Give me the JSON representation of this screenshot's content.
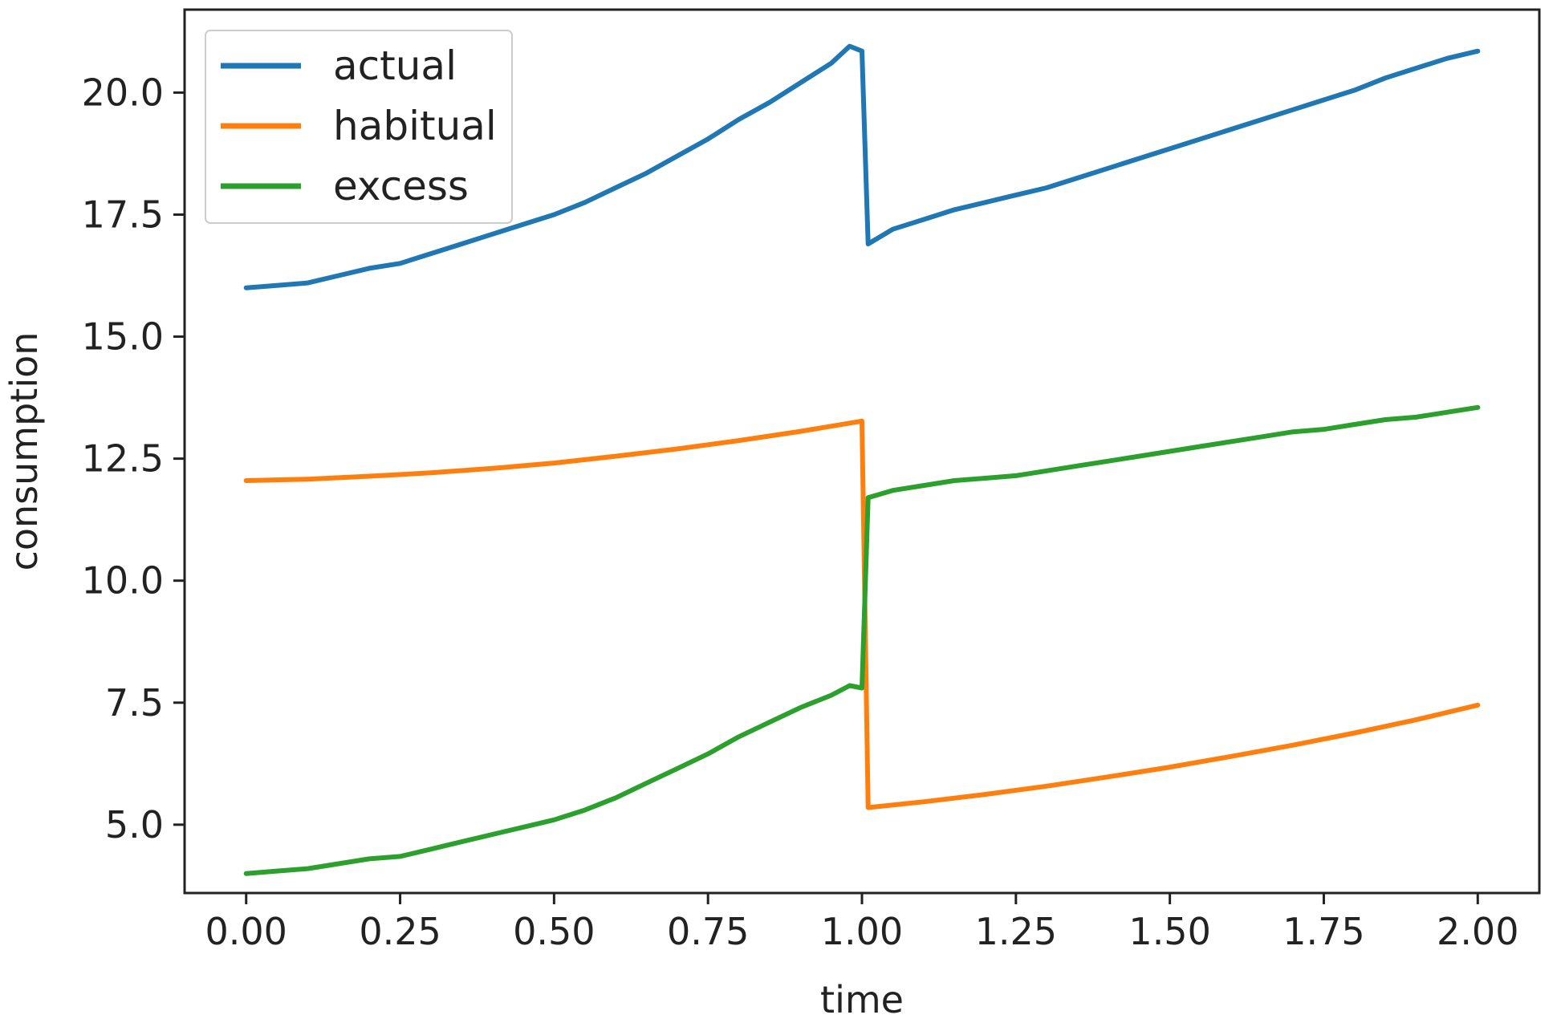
{
  "chart_data": {
    "type": "line",
    "title": "",
    "xlabel": "time",
    "ylabel": "consumption",
    "xlim": [
      -0.1,
      2.1
    ],
    "ylim": [
      3.6,
      21.7
    ],
    "x_ticks": [
      0.0,
      0.25,
      0.5,
      0.75,
      1.0,
      1.25,
      1.5,
      1.75,
      2.0
    ],
    "x_tick_labels": [
      "0.00",
      "0.25",
      "0.50",
      "0.75",
      "1.00",
      "1.25",
      "1.50",
      "1.75",
      "2.00"
    ],
    "y_ticks": [
      5.0,
      7.5,
      10.0,
      12.5,
      15.0,
      17.5,
      20.0
    ],
    "y_tick_labels": [
      "5.0",
      "7.5",
      "10.0",
      "12.5",
      "15.0",
      "17.5",
      "20.0"
    ],
    "grid": false,
    "legend_position": "top-left",
    "series": [
      {
        "name": "actual",
        "color": "#1f77b4",
        "x": [
          0.0,
          0.05,
          0.1,
          0.15,
          0.2,
          0.25,
          0.3,
          0.35,
          0.4,
          0.45,
          0.5,
          0.55,
          0.6,
          0.65,
          0.7,
          0.75,
          0.8,
          0.85,
          0.9,
          0.95,
          0.98,
          1.0,
          1.01,
          1.05,
          1.1,
          1.15,
          1.2,
          1.25,
          1.3,
          1.35,
          1.4,
          1.45,
          1.5,
          1.55,
          1.6,
          1.65,
          1.7,
          1.75,
          1.8,
          1.85,
          1.9,
          1.95,
          2.0
        ],
        "y": [
          16.0,
          16.05,
          16.1,
          16.25,
          16.4,
          16.5,
          16.7,
          16.9,
          17.1,
          17.3,
          17.5,
          17.75,
          18.05,
          18.35,
          18.7,
          19.05,
          19.45,
          19.8,
          20.2,
          20.6,
          20.95,
          20.85,
          16.9,
          17.2,
          17.4,
          17.6,
          17.75,
          17.9,
          18.05,
          18.25,
          18.45,
          18.65,
          18.85,
          19.05,
          19.25,
          19.45,
          19.65,
          19.85,
          20.05,
          20.3,
          20.5,
          20.7,
          20.85
        ]
      },
      {
        "name": "habitual",
        "color": "#ff7f0e",
        "x": [
          0.0,
          0.1,
          0.2,
          0.3,
          0.4,
          0.5,
          0.6,
          0.7,
          0.8,
          0.9,
          1.0,
          1.01,
          1.1,
          1.2,
          1.3,
          1.4,
          1.5,
          1.6,
          1.7,
          1.8,
          1.9,
          2.0
        ],
        "y": [
          12.05,
          12.08,
          12.14,
          12.21,
          12.3,
          12.41,
          12.55,
          12.7,
          12.87,
          13.06,
          13.27,
          5.35,
          5.47,
          5.62,
          5.79,
          5.98,
          6.18,
          6.4,
          6.63,
          6.88,
          7.15,
          7.45
        ]
      },
      {
        "name": "excess",
        "color": "#2ca02c",
        "x": [
          0.0,
          0.05,
          0.1,
          0.15,
          0.2,
          0.25,
          0.3,
          0.35,
          0.4,
          0.45,
          0.5,
          0.55,
          0.6,
          0.65,
          0.7,
          0.75,
          0.8,
          0.85,
          0.9,
          0.95,
          0.98,
          1.0,
          1.01,
          1.05,
          1.1,
          1.15,
          1.2,
          1.25,
          1.3,
          1.35,
          1.4,
          1.45,
          1.5,
          1.55,
          1.6,
          1.65,
          1.7,
          1.75,
          1.8,
          1.85,
          1.9,
          1.95,
          2.0
        ],
        "y": [
          4.0,
          4.05,
          4.1,
          4.2,
          4.3,
          4.35,
          4.5,
          4.65,
          4.8,
          4.95,
          5.1,
          5.3,
          5.55,
          5.85,
          6.15,
          6.45,
          6.8,
          7.1,
          7.4,
          7.65,
          7.85,
          7.8,
          11.7,
          11.85,
          11.95,
          12.05,
          12.1,
          12.15,
          12.25,
          12.35,
          12.45,
          12.55,
          12.65,
          12.75,
          12.85,
          12.95,
          13.05,
          13.1,
          13.2,
          13.3,
          13.35,
          13.45,
          13.55
        ]
      }
    ]
  }
}
